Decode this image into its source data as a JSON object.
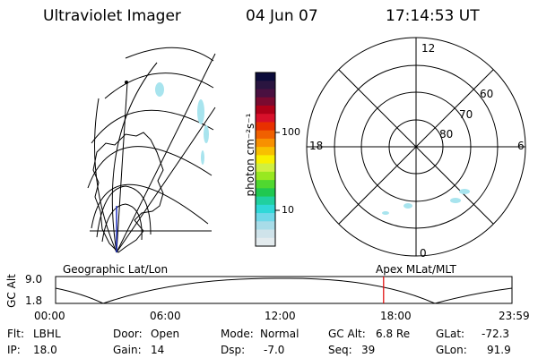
{
  "header": {
    "instrument": "Ultraviolet Imager",
    "date": "04 Jun 07",
    "time": "17:14:53 UT"
  },
  "geo_map": {
    "caption": "Geographic Lat/Lon"
  },
  "colorbar": {
    "label": "photon cm⁻²s⁻¹",
    "tick_labels": [
      "100",
      "10"
    ],
    "colors": [
      "#0b0b3a",
      "#2a1540",
      "#4a1040",
      "#7a0a30",
      "#b00018",
      "#d8102a",
      "#e83000",
      "#f06000",
      "#f89000",
      "#f8c000",
      "#f8f000",
      "#d0f040",
      "#98e820",
      "#50d830",
      "#20c850",
      "#20d0a0",
      "#30d8d8",
      "#70d8e8",
      "#a8dce8",
      "#cfe3ea",
      "#e3ebee"
    ]
  },
  "polar_map": {
    "caption": "Apex MLat/MLT",
    "mlt_labels": {
      "top": "12",
      "left": "18",
      "right": "6",
      "bottom": "0"
    },
    "lat_labels": [
      "60",
      "70",
      "80"
    ]
  },
  "timeline": {
    "axis_label": "GC Alt",
    "y_ticks": [
      "9.0",
      "1.8"
    ],
    "x_ticks": [
      "00:00",
      "06:00",
      "12:00",
      "18:00",
      "23:59"
    ],
    "current_time_fraction": 0.7187
  },
  "status": {
    "filter_label": "Flt:",
    "filter_value": "LBHL",
    "ip_label": "IP:",
    "ip_value": "18.0",
    "door_label": "Door:",
    "door_value": "Open",
    "gain_label": "Gain:",
    "gain_value": "14",
    "mode_label": "Mode:",
    "mode_value": "Normal",
    "dsp_label": "Dsp:",
    "dsp_value": "-7.0",
    "gcalt_label": "GC Alt:",
    "gcalt_value": "6.8 Re",
    "seq_label": "Seq:",
    "seq_value": "39",
    "glat_label": "GLat:",
    "glat_value": "-72.3",
    "glon_label": "GLon:",
    "glon_value": "91.9"
  },
  "colors": {
    "foreground": "#000000",
    "background": "#ffffff",
    "aurora": "#a8e4ee",
    "time_marker": "#e00000"
  }
}
